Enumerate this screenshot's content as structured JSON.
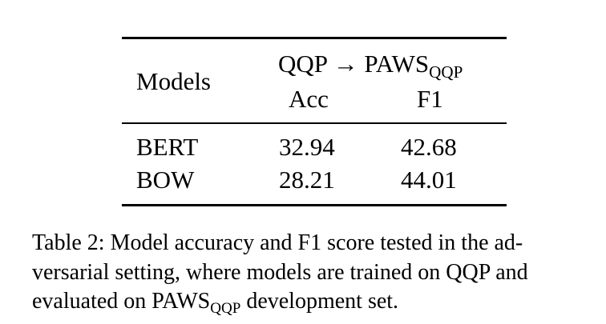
{
  "table": {
    "header": {
      "models_label": "Models",
      "group_label_main": "QQP → PAWS",
      "group_label_sub": "QQP",
      "col_acc": "Acc",
      "col_f1": "F1"
    },
    "rows": [
      {
        "model": "BERT",
        "acc": "32.94",
        "f1": "42.68"
      },
      {
        "model": "BOW",
        "acc": "28.21",
        "f1": "44.01"
      }
    ]
  },
  "caption": {
    "line1": "Table 2: Model accuracy and F1 score tested in the ad-",
    "line2": "versarial setting, where models are trained on QQP and",
    "line3_prefix": "evaluated on PAWS",
    "line3_sub": "QQP",
    "line3_suffix": " development set."
  }
}
